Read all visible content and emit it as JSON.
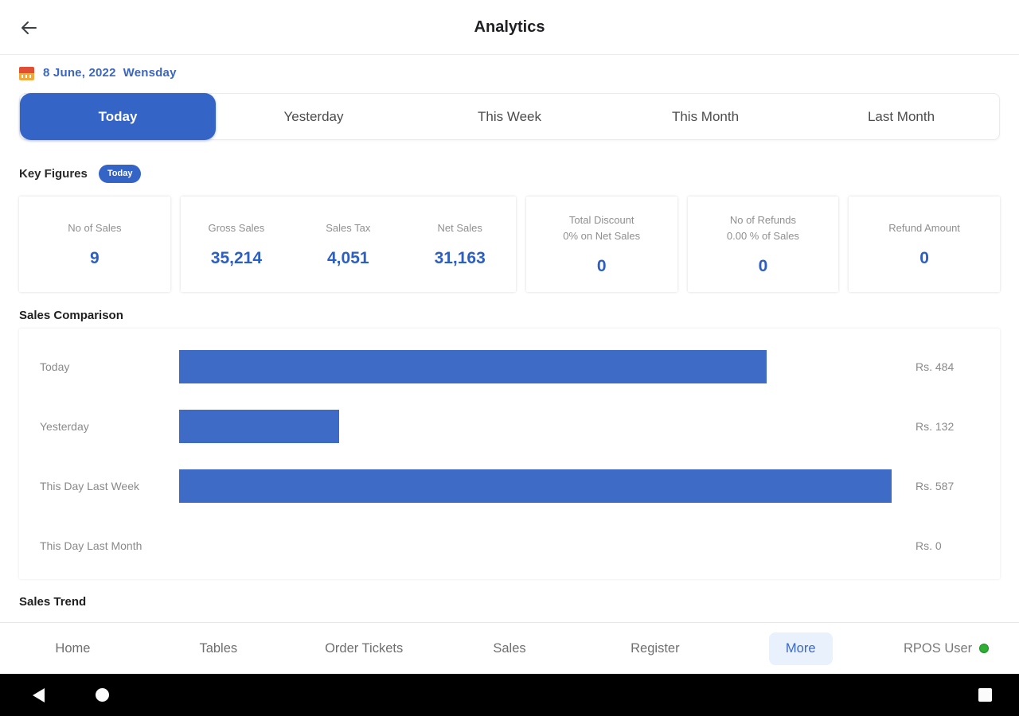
{
  "header": {
    "title": "Analytics"
  },
  "date_bar": {
    "date": "8 June, 2022",
    "weekday": "Wensday"
  },
  "tabs": [
    {
      "label": "Today",
      "active": true
    },
    {
      "label": "Yesterday",
      "active": false
    },
    {
      "label": "This Week",
      "active": false
    },
    {
      "label": "This Month",
      "active": false
    },
    {
      "label": "Last Month",
      "active": false
    }
  ],
  "key_figures": {
    "heading": "Key Figures",
    "badge": "Today",
    "cards": [
      {
        "metrics": [
          {
            "label": "No of Sales",
            "value": "9"
          }
        ]
      },
      {
        "metrics": [
          {
            "label": "Gross Sales",
            "value": "35,214"
          },
          {
            "label": "Sales Tax",
            "value": "4,051"
          },
          {
            "label": "Net Sales",
            "value": "31,163"
          }
        ]
      },
      {
        "metrics": [
          {
            "label": "Total Discount",
            "sublabel": "0% on Net Sales",
            "value": "0"
          }
        ]
      },
      {
        "metrics": [
          {
            "label": "No of Refunds",
            "sublabel": "0.00 % of Sales",
            "value": "0"
          }
        ]
      },
      {
        "metrics": [
          {
            "label": "Refund Amount",
            "value": "0"
          }
        ]
      }
    ]
  },
  "chart_data": {
    "type": "bar",
    "orientation": "horizontal",
    "title": "Sales Comparison",
    "categories": [
      "Today",
      "Yesterday",
      "This Day Last Week",
      "This Day Last Month"
    ],
    "values": [
      484,
      132,
      587,
      0
    ],
    "value_labels": [
      "Rs. 484",
      "Rs. 132",
      "Rs. 587",
      "Rs. 0"
    ],
    "currency_prefix": "Rs.",
    "xlim": [
      0,
      600
    ],
    "grid": false,
    "legend": "none",
    "bar_color": "#3e6bc6"
  },
  "sales_trend": {
    "heading": "Sales Trend"
  },
  "bottom_nav": {
    "items": [
      {
        "label": "Home",
        "active": false
      },
      {
        "label": "Tables",
        "active": false
      },
      {
        "label": "Order Tickets",
        "active": false
      },
      {
        "label": "Sales",
        "active": false
      },
      {
        "label": "Register",
        "active": false
      },
      {
        "label": "More",
        "active": true
      }
    ],
    "user": {
      "label": "RPOS User",
      "status": "online",
      "status_color": "#2fae33"
    }
  },
  "colors": {
    "accent_blue": "#3464c6",
    "value_blue": "#2d5ec2",
    "bar_blue": "#3e6bc6",
    "label_gray": "#8f8f8f",
    "online_green": "#2fae33"
  },
  "android_nav": {
    "icons": [
      "back",
      "home",
      "recents"
    ]
  }
}
